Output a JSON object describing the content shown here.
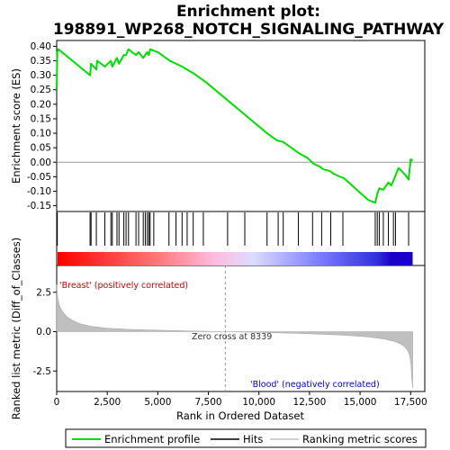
{
  "chart_data": {
    "type": "line",
    "title_line1": "Enrichment plot:",
    "title_line2": "198891_WP268_NOTCH_SIGNALING_PATHWAY",
    "xlabel": "Rank in Ordered Dataset",
    "ylabel_top": "Enrichment score (ES)",
    "ylabel_bottom": "Ranked list metric (Diff_of_Classes)",
    "xlim": [
      0,
      18200
    ],
    "x_ticks": [
      0,
      2500,
      5000,
      7500,
      10000,
      12500,
      15000,
      17500
    ],
    "x_tick_labels": [
      "0",
      "2,500",
      "5,000",
      "7,500",
      "10,000",
      "12,500",
      "15,000",
      "17,500"
    ],
    "es_ylim": [
      -0.17,
      0.42
    ],
    "es_ticks": [
      -0.15,
      -0.1,
      -0.05,
      0.0,
      0.05,
      0.1,
      0.15,
      0.2,
      0.25,
      0.3,
      0.35,
      0.4
    ],
    "es_tick_labels": [
      "-0.15",
      "-0.10",
      "-0.05",
      "0.00",
      "0.05",
      "0.10",
      "0.15",
      "0.20",
      "0.25",
      "0.30",
      "0.35",
      "0.40"
    ],
    "metric_ylim": [
      -3.8,
      4.2
    ],
    "metric_ticks": [
      -2.5,
      0.0,
      2.5
    ],
    "metric_tick_labels": [
      "-2.5",
      "0.0",
      "2.5"
    ],
    "enrichment_profile": {
      "x": [
        0,
        30,
        80,
        1650,
        1700,
        1960,
        2000,
        2380,
        2680,
        2750,
        2980,
        3080,
        3320,
        3430,
        3550,
        3720,
        3920,
        4050,
        4280,
        4380,
        4480,
        4560,
        4620,
        4800,
        5000,
        5600,
        6200,
        6800,
        7400,
        8000,
        8600,
        9200,
        9800,
        10400,
        10900,
        11200,
        11600,
        12000,
        12400,
        12700,
        13000,
        13200,
        13500,
        13700,
        14000,
        14200,
        14600,
        15000,
        15400,
        15750,
        15850,
        15950,
        16150,
        16400,
        16550,
        16700,
        16900,
        17050,
        17250,
        17400,
        17500,
        17600
      ],
      "y": [
        0.25,
        0.38,
        0.39,
        0.3,
        0.34,
        0.32,
        0.35,
        0.33,
        0.35,
        0.33,
        0.36,
        0.34,
        0.37,
        0.37,
        0.39,
        0.38,
        0.37,
        0.38,
        0.36,
        0.37,
        0.38,
        0.37,
        0.39,
        0.385,
        0.38,
        0.35,
        0.33,
        0.305,
        0.275,
        0.24,
        0.205,
        0.17,
        0.135,
        0.1,
        0.075,
        0.07,
        0.05,
        0.03,
        0.015,
        -0.005,
        -0.015,
        -0.025,
        -0.03,
        -0.04,
        -0.05,
        -0.055,
        -0.08,
        -0.105,
        -0.13,
        -0.14,
        -0.11,
        -0.09,
        -0.095,
        -0.07,
        -0.08,
        -0.055,
        -0.02,
        -0.03,
        -0.045,
        -0.06,
        0.01,
        0.005
      ]
    },
    "hits": [
      30,
      1650,
      1700,
      1960,
      2380,
      2680,
      2750,
      2980,
      3080,
      3320,
      3430,
      3550,
      3920,
      4050,
      4280,
      4380,
      4480,
      4560,
      4620,
      4800,
      5550,
      5900,
      6200,
      6450,
      6750,
      7250,
      8450,
      9300,
      10400,
      10950,
      11200,
      11950,
      12650,
      13100,
      13550,
      14150,
      15750,
      15850,
      15950,
      16150,
      16400,
      16650,
      16750,
      17400
    ],
    "ranking_metric": {
      "x": [
        0,
        50,
        150,
        300,
        500,
        800,
        1200,
        1700,
        2500,
        3500,
        5000,
        6500,
        8339,
        10000,
        12000,
        13500,
        14500,
        15500,
        16200,
        16700,
        17000,
        17200,
        17350,
        17450,
        17520,
        17560,
        17600
      ],
      "y": [
        3.0,
        2.1,
        1.6,
        1.25,
        0.95,
        0.7,
        0.48,
        0.33,
        0.22,
        0.15,
        0.09,
        0.05,
        0.0,
        -0.05,
        -0.11,
        -0.18,
        -0.25,
        -0.35,
        -0.47,
        -0.62,
        -0.78,
        -0.95,
        -1.2,
        -1.5,
        -2.1,
        -3.0,
        -3.6
      ]
    },
    "zero_cross_rank": 8339,
    "zero_cross_label": "Zero cross at 8339",
    "pos_label": "'Breast' (positively correlated)",
    "neg_label": "'Blood' (negatively correlated)",
    "colors": {
      "profile": "#00dd00",
      "hit": "#000000",
      "metric_fill": "#bfbfbf",
      "pos_text": "#cc0000",
      "neg_text": "#0000cc",
      "heat_stops": [
        "#ff0000",
        "#ff7777",
        "#ffbbdd",
        "#dcdcff",
        "#8080ff",
        "#3030e0",
        "#1a00c8"
      ]
    },
    "legend": {
      "items": [
        {
          "label": "Enrichment profile",
          "color": "#00dd00",
          "kind": "line"
        },
        {
          "label": "Hits",
          "color": "#000000",
          "kind": "line"
        },
        {
          "label": "Ranking metric scores",
          "color": "#bfbfbf",
          "kind": "line"
        }
      ]
    }
  }
}
